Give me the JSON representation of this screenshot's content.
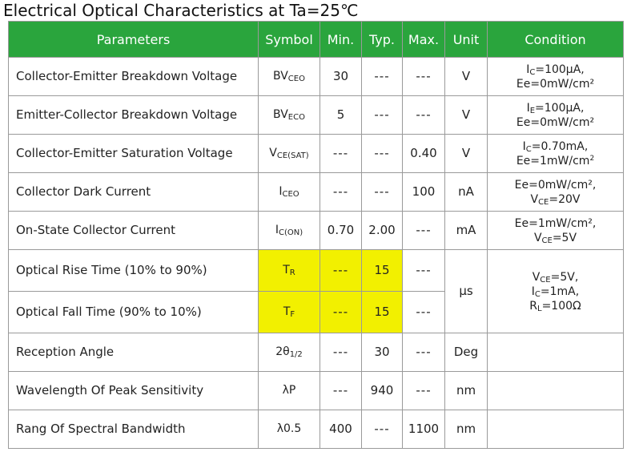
{
  "title": "Electrical Optical Characteristics at Ta=25℃",
  "headers": {
    "parameters": "Parameters",
    "symbol": "Symbol",
    "min": "Min.",
    "typ": "Typ.",
    "max": "Max.",
    "unit": "Unit",
    "condition": "Condition"
  },
  "dash": "---",
  "rows": [
    {
      "param": "Collector-Emitter Breakdown Voltage",
      "sym": "BV",
      "sym_sub": "CEO",
      "min": "30",
      "typ": "---",
      "max": "---",
      "unit": "V",
      "cond1a": "I",
      "cond1s": "C",
      "cond1b": "=100μA,",
      "cond2": "Ee=0mW/cm²"
    },
    {
      "param": "Emitter-Collector Breakdown Voltage",
      "sym": "BV",
      "sym_sub": "ECO",
      "min": "5",
      "typ": "---",
      "max": "---",
      "unit": "V",
      "cond1a": "I",
      "cond1s": "E",
      "cond1b": "=100μA,",
      "cond2": "Ee=0mW/cm²"
    },
    {
      "param": "Collector-Emitter Saturation Voltage",
      "sym": "V",
      "sym_sub": "CE(SAT)",
      "min": "---",
      "typ": "---",
      "max": "0.40",
      "unit": "V",
      "cond1a": "I",
      "cond1s": "C",
      "cond1b": "=0.70mA,",
      "cond2a": "Ee=1mW/cm",
      "cond2sup": "2"
    },
    {
      "param": "Collector Dark Current",
      "sym": "I",
      "sym_sub": "CEO",
      "min": "---",
      "typ": "---",
      "max": "100",
      "unit": "nA",
      "cond1": "Ee=0mW/cm²,",
      "cond2a": "V",
      "cond2s": "CE",
      "cond2b": "=20V"
    },
    {
      "param": "On-State Collector Current",
      "sym": "I",
      "sym_sub": "C(ON)",
      "min": "0.70",
      "typ": "2.00",
      "max": "---",
      "unit": "mA",
      "cond1": "Ee=1mW/cm²,",
      "cond2a": "V",
      "cond2s": "CE",
      "cond2b": "=5V"
    },
    {
      "param": "Optical Rise Time (10% to 90%)",
      "sym": "T",
      "sym_sub": "R",
      "min": "---",
      "typ": "15",
      "max": "---"
    },
    {
      "param": "Optical Fall Time (90% to 10%)",
      "sym": "T",
      "sym_sub": "F",
      "min": "---",
      "typ": "15",
      "max": "---"
    },
    {
      "param": "Reception Angle",
      "sym": "2θ",
      "sym_sub": "1/2",
      "min": "---",
      "typ": "30",
      "max": "---",
      "unit": "Deg"
    },
    {
      "param": "Wavelength Of Peak Sensitivity",
      "sym": "λP",
      "min": "---",
      "typ": "940",
      "max": "---",
      "unit": "nm"
    },
    {
      "param": "Rang Of Spectral Bandwidth",
      "sym": "λ0.5",
      "min": "400",
      "typ": "---",
      "max": "1100",
      "unit": "nm"
    }
  ],
  "timing": {
    "unit": "μs",
    "cond1a": "V",
    "cond1s": "CE",
    "cond1b": "=5V,",
    "cond2a": "I",
    "cond2s": "C",
    "cond2b": "=1mA,",
    "cond3a": "R",
    "cond3s": "L",
    "cond3b": "=100Ω"
  },
  "highlight_color": "#f2f000",
  "header_color": "#2aa53d"
}
